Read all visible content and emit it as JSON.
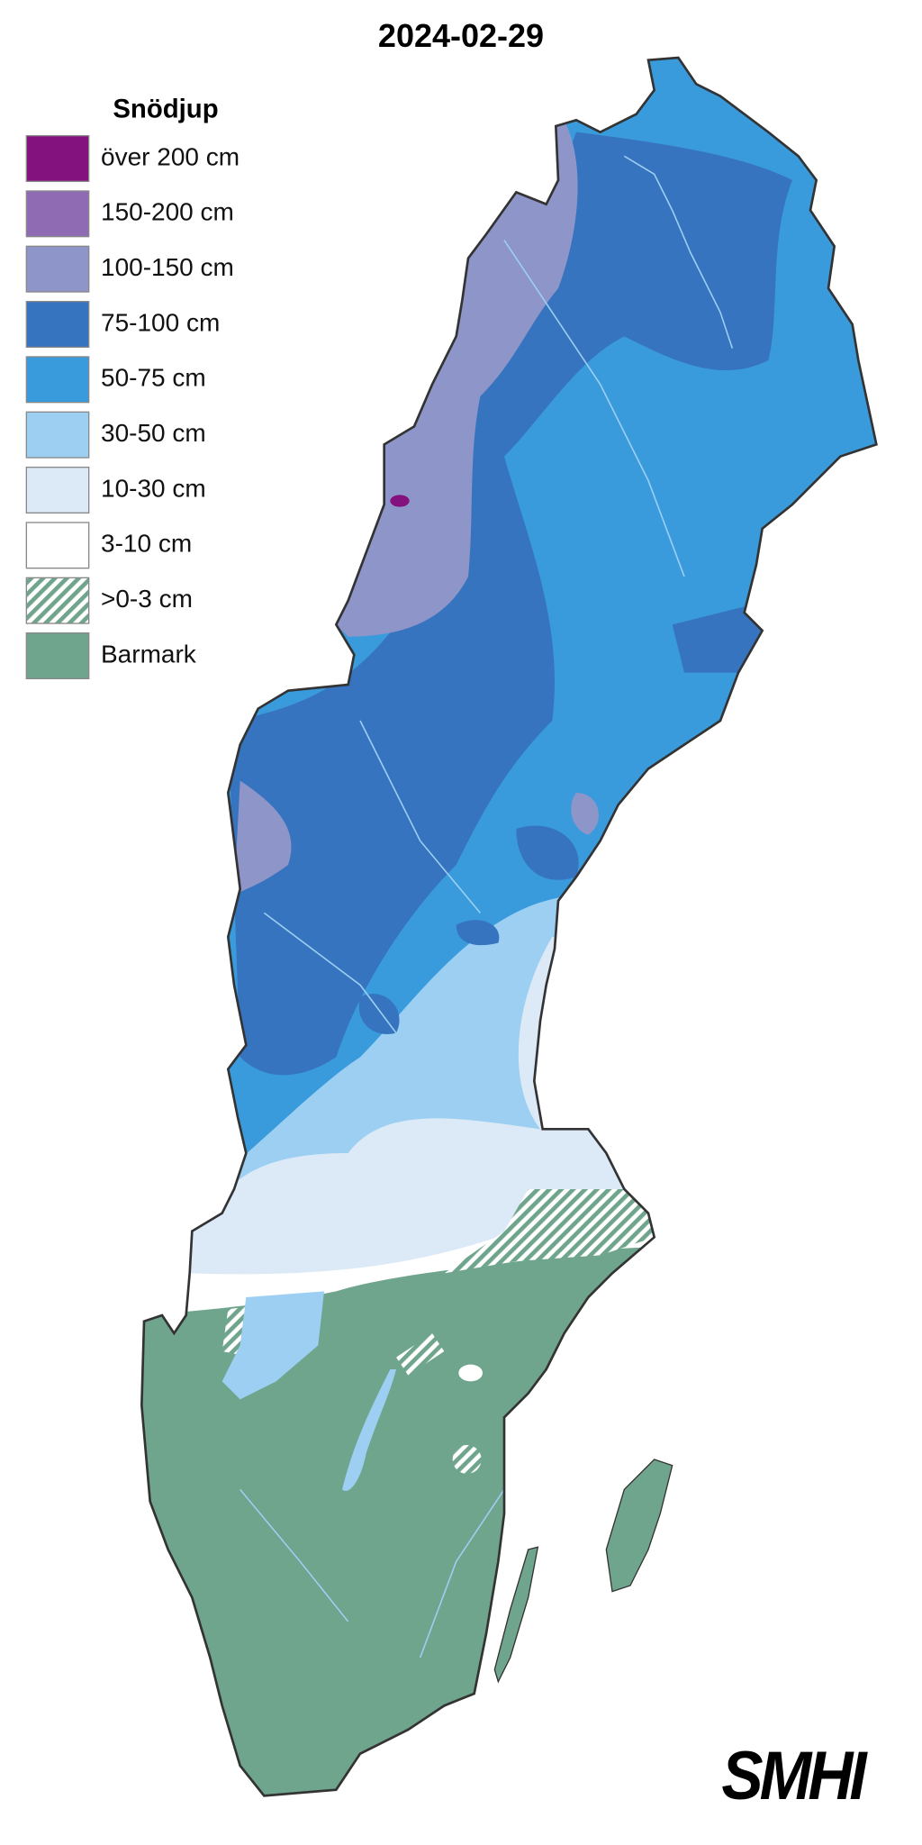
{
  "title": "2024-02-29",
  "legend": {
    "title": "Snödjup",
    "items": [
      {
        "label": "över 200 cm",
        "color": "#84127e"
      },
      {
        "label": "150-200 cm",
        "color": "#8f6bb4"
      },
      {
        "label": "100-150 cm",
        "color": "#8e95c8"
      },
      {
        "label": "75-100 cm",
        "color": "#3674bf"
      },
      {
        "label": "50-75 cm",
        "color": "#3a9bdc"
      },
      {
        "label": "30-50 cm",
        "color": "#9ccff2"
      },
      {
        "label": "10-30 cm",
        "color": "#dce9f6"
      },
      {
        "label": "3-10 cm",
        "color": "#ffffff"
      },
      {
        "label": ">0-3 cm",
        "color": "#6fa58c",
        "hatched": true
      },
      {
        "label": "Barmark",
        "color": "#6fa58c"
      }
    ]
  },
  "logo": "SMHI"
}
